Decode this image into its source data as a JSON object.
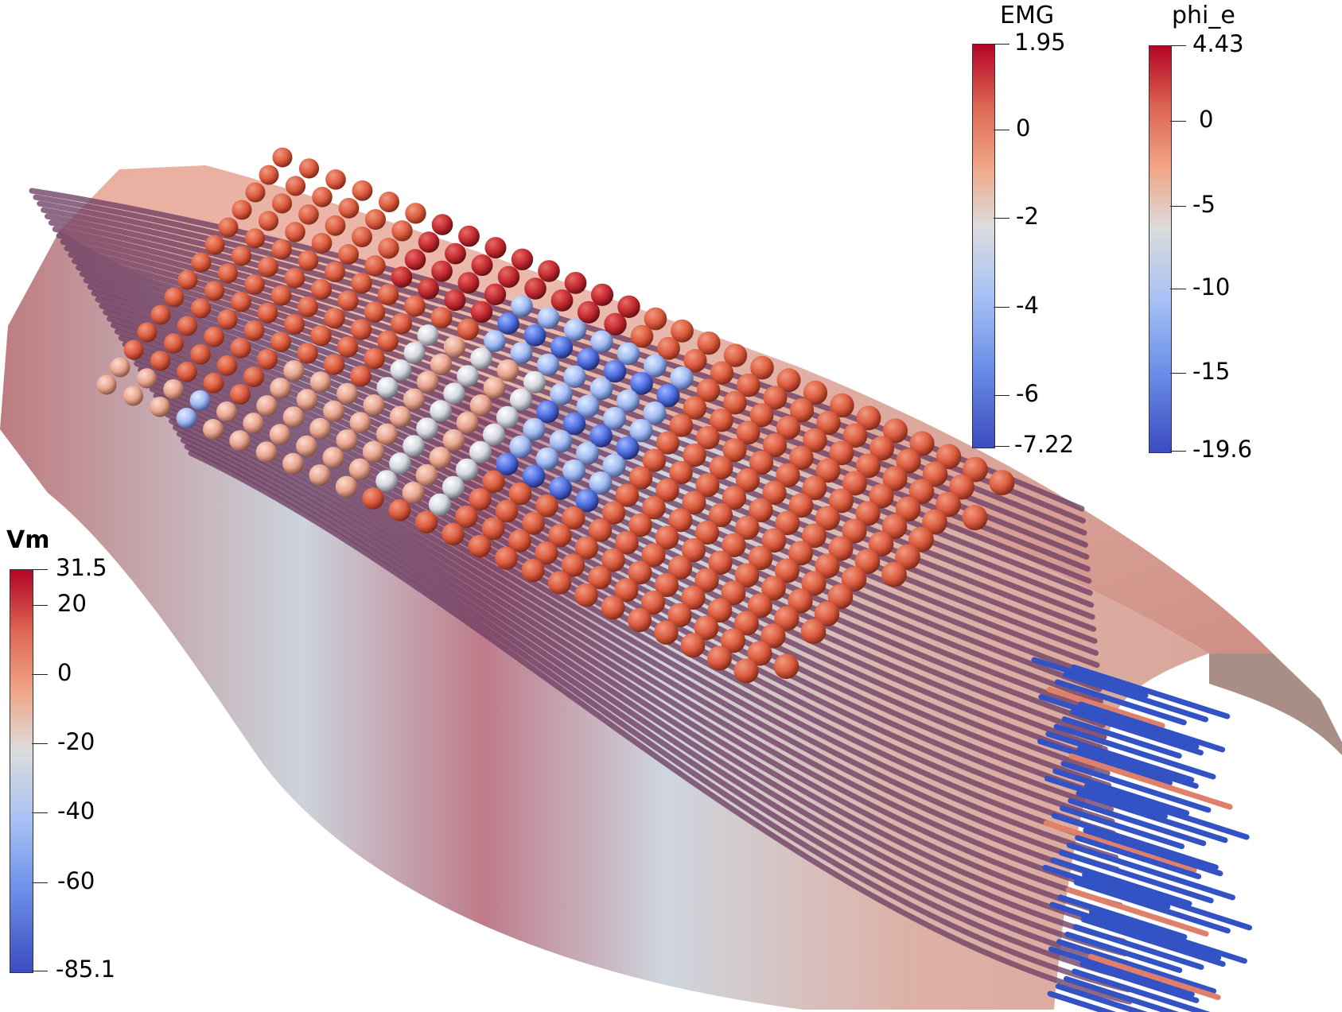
{
  "colorbars": {
    "emg": {
      "title": "EMG",
      "max_label": "1.95",
      "min_label": "-7.22",
      "ticks": [
        "0",
        "-2",
        "-4",
        "-6"
      ]
    },
    "phi_e": {
      "title": "phi_e",
      "max_label": "4.43",
      "min_label": "-19.6",
      "ticks": [
        "0",
        "-5",
        "-10",
        "-15"
      ]
    },
    "vm": {
      "title": "Vm",
      "max_label": "31.5",
      "min_label": "-85.1",
      "ticks": [
        "20",
        "0",
        "-20",
        "-40",
        "-60"
      ]
    }
  },
  "colormap": {
    "low": "#3b4cc0",
    "mid": "#dddddd",
    "high": "#b40426"
  },
  "scene": {
    "description_icon": "muscle-fiber-visualization",
    "fiber_color": "#6e3f63",
    "fiber_end_color": "#3352c4",
    "surface_color": "#d58c82",
    "electrode_color": "#d65a3e"
  }
}
